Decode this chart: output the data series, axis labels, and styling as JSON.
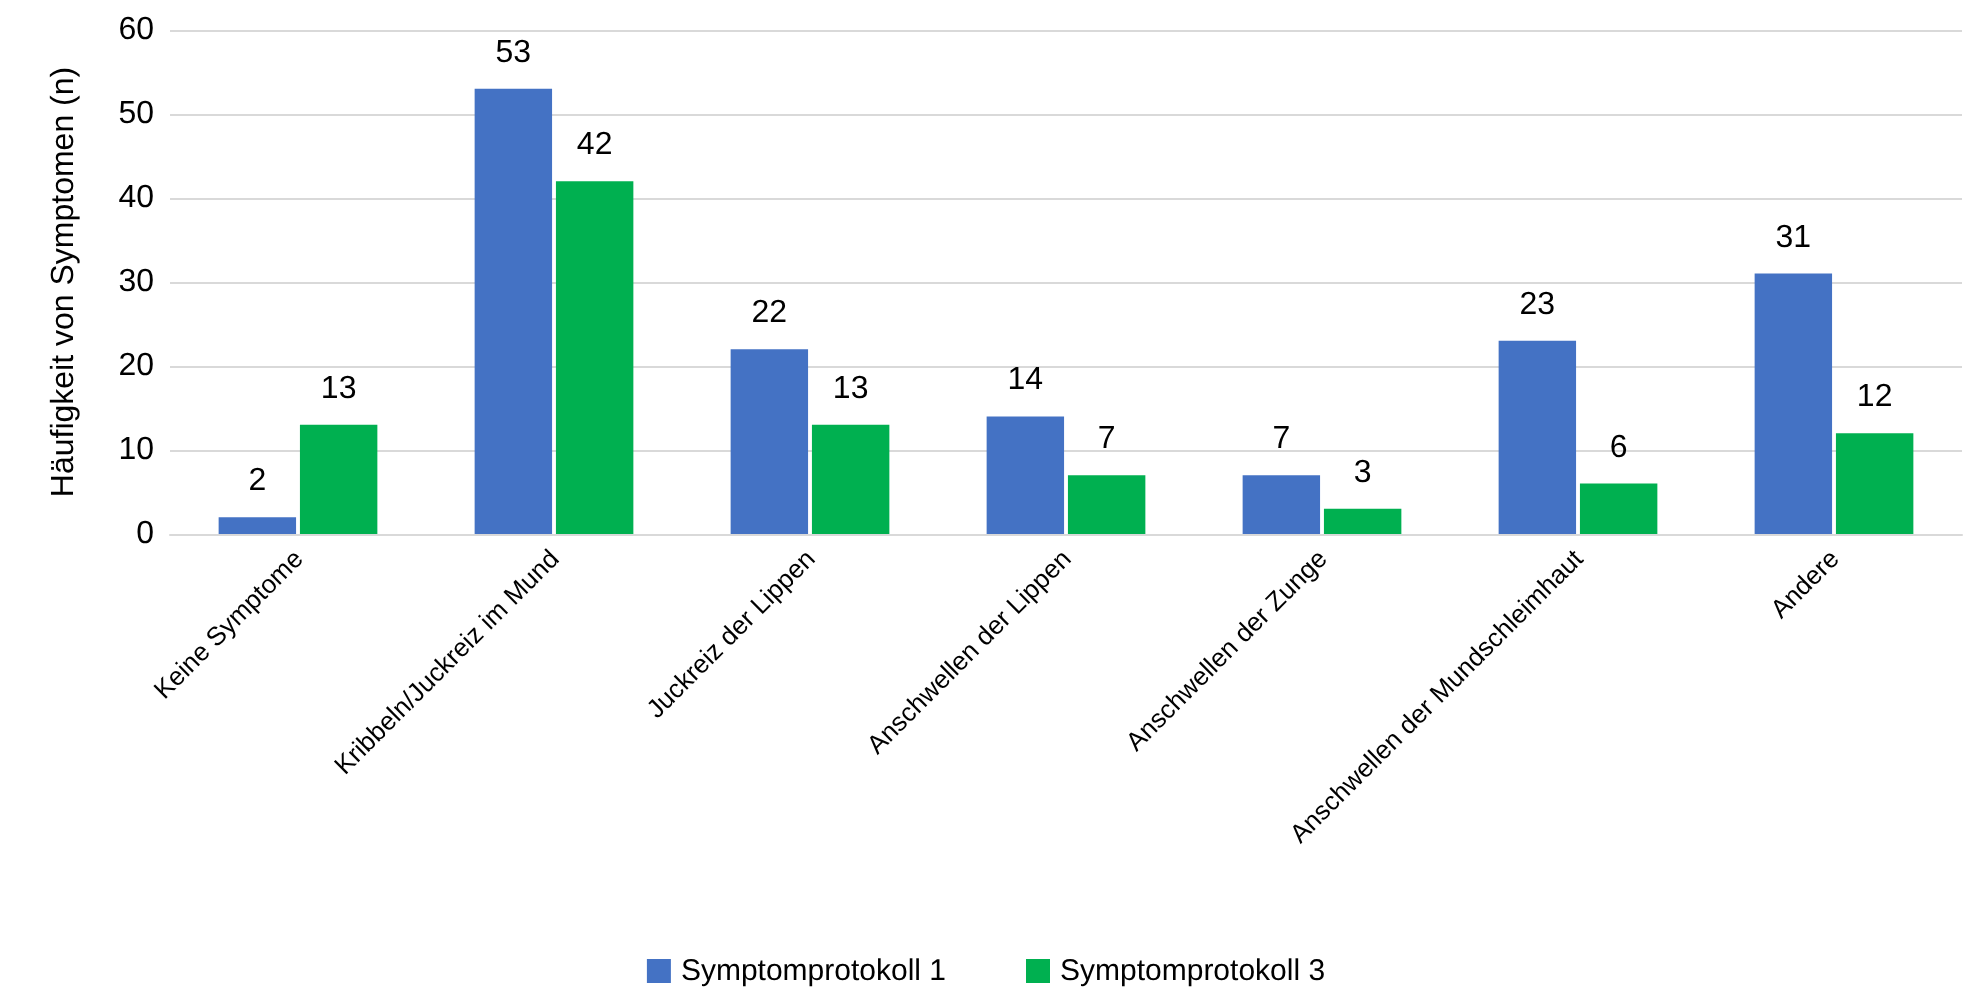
{
  "chart_data": {
    "type": "bar",
    "ylabel": "Häufigkeit von Symptomen (n)",
    "categories": [
      "Keine Symptome",
      "Kribbeln/Juckreiz im Mund",
      "Juckreiz der Lippen",
      "Anschwellen der Lippen",
      "Anschwellen der Zunge",
      "Anschwellen der Mundschleimhaut",
      "Andere"
    ],
    "series": [
      {
        "name": "Symptomprotokoll 1",
        "color": "#4472c4",
        "values": [
          2,
          53,
          22,
          14,
          7,
          23,
          31
        ]
      },
      {
        "name": "Symptomprotokoll 3",
        "color": "#00b050",
        "values": [
          13,
          42,
          13,
          7,
          3,
          6,
          12
        ]
      }
    ],
    "ylim": [
      0,
      60
    ],
    "yticks": [
      0,
      10,
      20,
      30,
      40,
      50,
      60
    ],
    "grid": "y",
    "legend": "bottom",
    "data_labels": true
  }
}
